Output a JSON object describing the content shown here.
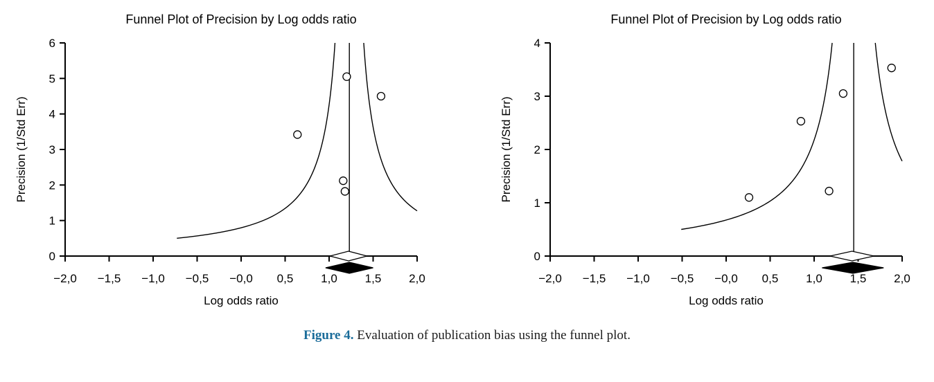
{
  "figure": {
    "caption_label": "Figure 4.",
    "caption_text": " Evaluation of publication bias using the funnel plot.",
    "accent_color": "#1a6c9a",
    "line_color": "#000000",
    "background_color": "#ffffff"
  },
  "chart_data": [
    {
      "type": "scatter",
      "subtype": "funnel-plot",
      "title": "Funnel Plot of Precision by Log odds ratio",
      "xlabel": "Log odds ratio",
      "ylabel": "Precision (1/Std Err)",
      "xlim": [
        -2.0,
        2.0
      ],
      "ylim": [
        0,
        6
      ],
      "x_ticks": [
        -2.0,
        -1.5,
        -1.0,
        -0.5,
        0.0,
        0.5,
        1.0,
        1.5,
        2.0
      ],
      "x_tick_labels": [
        "−2,0",
        "−1,5",
        "−1,0",
        "−0,5",
        "−0,0",
        "0,5",
        "1,0",
        "1,5",
        "2,0"
      ],
      "y_ticks": [
        0,
        1,
        2,
        3,
        4,
        5,
        6
      ],
      "y_tick_labels": [
        "0",
        "1",
        "2",
        "3",
        "4",
        "5",
        "6"
      ],
      "grid": false,
      "legend": false,
      "mean_log_odds": 1.23,
      "funnel_halfwidth_coef": 0.98,
      "funnel_y_min": 0.5,
      "points": [
        {
          "x": 1.2,
          "y": 5.05
        },
        {
          "x": 1.59,
          "y": 4.5
        },
        {
          "x": 0.64,
          "y": 3.42
        },
        {
          "x": 1.16,
          "y": 2.12
        },
        {
          "x": 1.18,
          "y": 1.82
        }
      ],
      "open_diamond": {
        "center": 1.22,
        "half_width": 0.21
      },
      "filled_diamond": {
        "center": 1.23,
        "half_width": 0.27
      }
    },
    {
      "type": "scatter",
      "subtype": "funnel-plot",
      "title": "Funnel Plot of Precision by Log odds ratio",
      "xlabel": "Log odds ratio",
      "ylabel": "Precision (1/Std Err)",
      "xlim": [
        -2.0,
        2.0
      ],
      "ylim": [
        0,
        4
      ],
      "x_ticks": [
        -2.0,
        -1.5,
        -1.0,
        -0.5,
        0.0,
        0.5,
        1.0,
        1.5,
        2.0
      ],
      "x_tick_labels": [
        "−2,0",
        "−1,5",
        "−1,0",
        "−0,5",
        "−0,0",
        "0,5",
        "1,0",
        "1,5",
        "2,0"
      ],
      "y_ticks": [
        0,
        1,
        2,
        3,
        4
      ],
      "y_tick_labels": [
        "0",
        "1",
        "2",
        "3",
        "4"
      ],
      "grid": false,
      "legend": false,
      "mean_log_odds": 1.45,
      "funnel_halfwidth_coef": 0.98,
      "funnel_y_min": 0.5,
      "points": [
        {
          "x": 1.88,
          "y": 3.53
        },
        {
          "x": 1.33,
          "y": 3.05
        },
        {
          "x": 0.85,
          "y": 2.53
        },
        {
          "x": 1.17,
          "y": 1.22
        },
        {
          "x": 0.26,
          "y": 1.1
        }
      ],
      "open_diamond": {
        "center": 1.43,
        "half_width": 0.25
      },
      "filled_diamond": {
        "center": 1.44,
        "half_width": 0.35
      }
    }
  ]
}
